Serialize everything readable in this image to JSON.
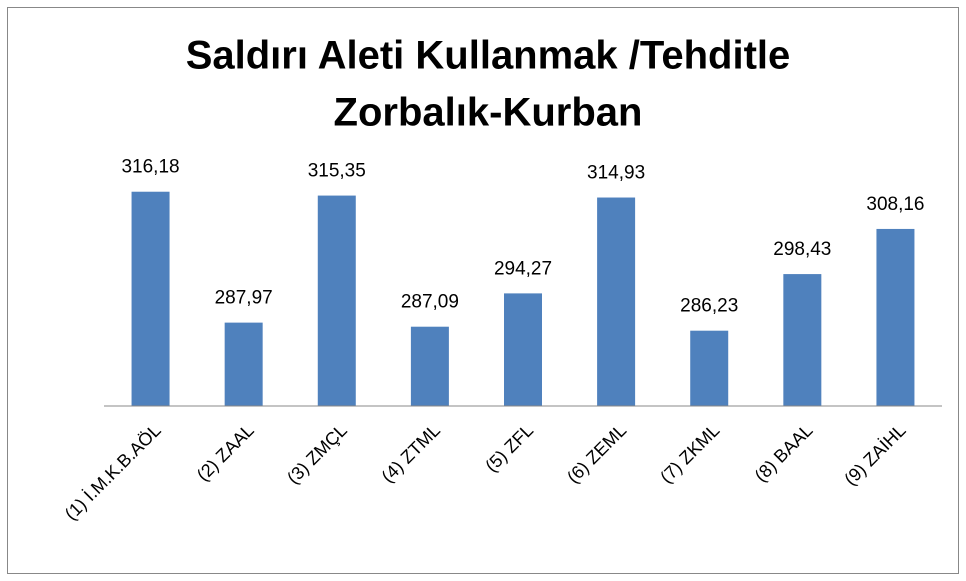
{
  "chart_data": {
    "type": "bar",
    "title": [
      "Saldırı Aleti Kullanmak /Tehditle",
      "Zorbalık-Kurban"
    ],
    "categories": [
      "(1) İ.M.K.B.AÖL",
      "(2) ZAAL",
      "(3) ZMÇL",
      "(4) ZTML",
      "(5) ZFL",
      "(6) ZEML",
      "(7) ZKML",
      "(8) BAAL",
      "(9) ZAİHL"
    ],
    "values": [
      316.18,
      287.97,
      315.35,
      287.09,
      294.27,
      314.93,
      286.23,
      298.43,
      308.16
    ],
    "value_labels": [
      "316,18",
      "287,97",
      "315,35",
      "287,09",
      "294,27",
      "314,93",
      "286,23",
      "298,43",
      "308,16"
    ],
    "color": "#4f81bd",
    "ylim": [
      270,
      320
    ]
  }
}
